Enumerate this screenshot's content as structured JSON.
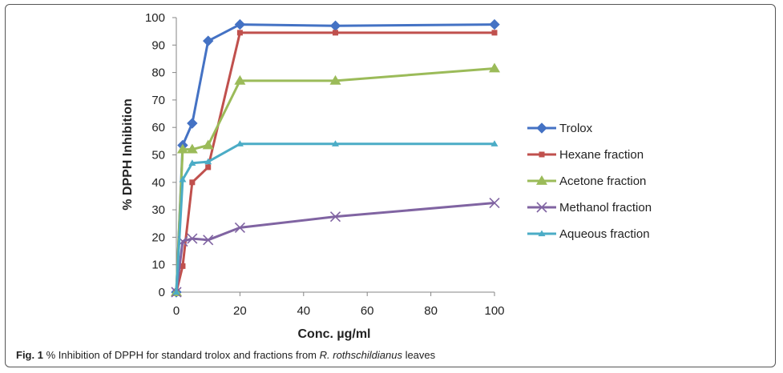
{
  "caption": {
    "label": "Fig. 1",
    "text_before": " % Inhibition of DPPH for standard trolox and fractions from ",
    "species": "R. rothschildianus",
    "text_after": " leaves"
  },
  "chart_data": {
    "type": "line",
    "title": "",
    "xlabel": "Conc. µg/ml",
    "ylabel": "% DPPH  Inhibition",
    "xlim": [
      0,
      100
    ],
    "ylim": [
      0,
      100
    ],
    "xticks": [
      0,
      20,
      40,
      60,
      80,
      100
    ],
    "yticks": [
      0,
      10,
      20,
      30,
      40,
      50,
      60,
      70,
      80,
      90,
      100
    ],
    "grid": false,
    "legend_position": "right",
    "series": [
      {
        "name": "Trolox",
        "color": "#4472c4",
        "marker": "diamond",
        "x": [
          0,
          2,
          5,
          10,
          20,
          50,
          100
        ],
        "y": [
          0,
          53.5,
          61.5,
          91.5,
          97.5,
          97,
          97.5
        ]
      },
      {
        "name": "Hexane fraction",
        "color": "#c0504d",
        "marker": "square",
        "x": [
          0,
          2,
          5,
          10,
          20,
          50,
          100
        ],
        "y": [
          0,
          9.5,
          40,
          45.5,
          94.5,
          94.5,
          94.5
        ]
      },
      {
        "name": "Acetone fraction",
        "color": "#9bbb59",
        "marker": "triangle",
        "x": [
          0,
          2,
          5,
          10,
          20,
          50,
          100
        ],
        "y": [
          0,
          52,
          52,
          53.5,
          77,
          77,
          81.5
        ]
      },
      {
        "name": "Methanol fraction",
        "color": "#8064a2",
        "marker": "x",
        "x": [
          0,
          2,
          5,
          10,
          20,
          50,
          100
        ],
        "y": [
          0,
          18.5,
          19.5,
          19,
          23.5,
          27.5,
          32.5
        ]
      },
      {
        "name": "Aqueous fraction",
        "color": "#4bacc6",
        "marker": "triangle-small",
        "x": [
          0,
          2,
          5,
          10,
          20,
          50,
          100
        ],
        "y": [
          0,
          41,
          47,
          47.5,
          54,
          54,
          54
        ]
      }
    ]
  }
}
